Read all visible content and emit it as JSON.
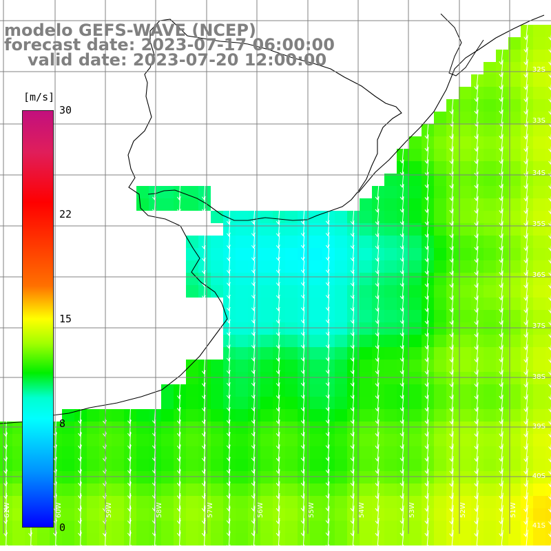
{
  "title": {
    "line1": "modelo GEFS-WAVE (NCEP)",
    "line2": "forecast date: 2023-07-17 06:00:00",
    "line3": "valid date: 2023-07-20 12:00:00"
  },
  "colorbar": {
    "unit": "[m/s]",
    "ticks": [
      "30",
      "22",
      "15",
      "8",
      "0"
    ],
    "range": [
      0,
      30
    ],
    "colors": {
      "max": "#c2107e",
      "high": "#ff0000",
      "mid_high": "#ff7000",
      "mid": "#ffff00",
      "mid_low": "#00ef00",
      "low": "#00ffff",
      "min": "#0000ff"
    }
  },
  "map": {
    "land_color": "#ffffff",
    "grid_color": "#808080",
    "arrow_color": "#ffffff",
    "lat_labels": [
      "32S",
      "33S",
      "34S",
      "35S",
      "36S",
      "37S",
      "38S",
      "39S",
      "40S",
      "41S"
    ],
    "lon_labels": [
      "61W",
      "60W",
      "59W",
      "58W",
      "57W",
      "56W",
      "55W",
      "54W",
      "53W",
      "52W",
      "51W"
    ]
  }
}
